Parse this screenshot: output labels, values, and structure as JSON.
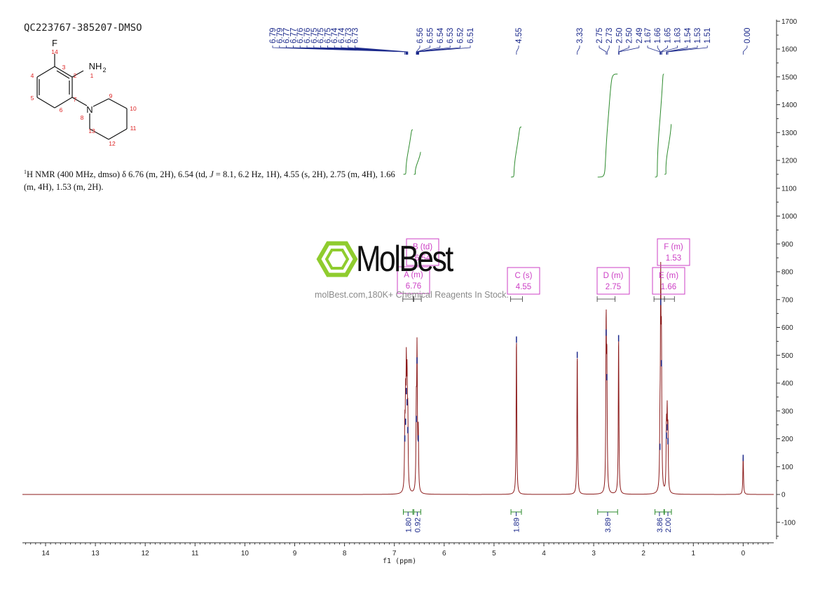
{
  "sample_id": "QC223767-385207-DMSO",
  "structure": {
    "atom_labels": {
      "f": "F",
      "f_num": "14",
      "nh2": "NH",
      "nh2_sub": "2",
      "nh2_num": "1",
      "n": "N",
      "n_num": "8",
      "c2": "2",
      "c3": "3",
      "c4": "4",
      "c5": "5",
      "c6": "6",
      "c7": "7",
      "c9": "9",
      "c10": "10",
      "c11": "11",
      "c12": "12",
      "c13": "13"
    }
  },
  "description": {
    "nucleus_sup": "1",
    "part1": "H NMR (400 MHz, dmso) δ 6.76 (m, 2H), 6.54 (td, ",
    "j": "J",
    "part2": " = 8.1, 6.2 Hz, 1H), 4.55 (s, 2H), 2.75 (m, 4H), 1.66",
    "part3": "(m, 4H), 1.53 (m, 2H)."
  },
  "watermark": {
    "brand": "MolBest",
    "caption": "molBest.com,180K+ Chemical Reagents In Stock."
  },
  "colors": {
    "spectrum": "#8b1a1a",
    "integral_curve": "#2e8b2e",
    "peak_labels": "#1c2a8c",
    "multiplet_box": "#cc3fc5",
    "watermark_logo": "#8fcc2e"
  },
  "chart_data": {
    "type": "line",
    "title": "",
    "xlabel": "f1 (ppm)",
    "ylabel": "",
    "xlim": [
      14.5,
      -0.55
    ],
    "ylim": [
      -170,
      1700
    ],
    "x_ticks": [
      "14",
      "13",
      "12",
      "11",
      "10",
      "9",
      "8",
      "7",
      "6",
      "5",
      "4",
      "3",
      "2",
      "1",
      "0"
    ],
    "y_ticks": [
      "1700",
      "1600",
      "1500",
      "1400",
      "1300",
      "1200",
      "1100",
      "1000",
      "900",
      "800",
      "700",
      "600",
      "500",
      "400",
      "300",
      "200",
      "100",
      "0",
      "-100"
    ],
    "peak_labels": [
      "6.79",
      "6.79",
      "6.77",
      "6.77",
      "6.76",
      "6.76",
      "6.75",
      "6.75",
      "6.75",
      "6.74",
      "6.74",
      "6.73",
      "6.73",
      "6.56",
      "6.55",
      "6.54",
      "6.53",
      "6.52",
      "6.51",
      "4.55",
      "3.33",
      "2.75",
      "2.73",
      "2.50",
      "2.50",
      "2.49",
      "1.67",
      "1.66",
      "1.65",
      "1.63",
      "1.54",
      "1.53",
      "1.51",
      "0.00"
    ],
    "peaks": [
      {
        "ppm": 6.79,
        "height": 210
      },
      {
        "ppm": 6.775,
        "height": 270
      },
      {
        "ppm": 6.76,
        "height": 380
      },
      {
        "ppm": 6.745,
        "height": 340
      },
      {
        "ppm": 6.73,
        "height": 240
      },
      {
        "ppm": 6.56,
        "height": 280
      },
      {
        "ppm": 6.545,
        "height": 490
      },
      {
        "ppm": 6.52,
        "height": 210
      },
      {
        "ppm": 4.55,
        "height": 565
      },
      {
        "ppm": 3.33,
        "height": 510
      },
      {
        "ppm": 2.75,
        "height": 590
      },
      {
        "ppm": 2.735,
        "height": 430
      },
      {
        "ppm": 2.5,
        "height": 570
      },
      {
        "ppm": 1.67,
        "height": 180
      },
      {
        "ppm": 1.655,
        "height": 700
      },
      {
        "ppm": 1.64,
        "height": 480
      },
      {
        "ppm": 1.54,
        "height": 220
      },
      {
        "ppm": 1.525,
        "height": 250
      },
      {
        "ppm": 1.51,
        "height": 200
      },
      {
        "ppm": 0.0,
        "height": 140
      }
    ],
    "integrals": [
      {
        "from": 6.82,
        "to": 6.63,
        "value": "1.80",
        "y_start": 1150,
        "y_end": 1310
      },
      {
        "from": 6.61,
        "to": 6.47,
        "value": "0.92",
        "y_start": 1150,
        "y_end": 1230
      },
      {
        "from": 4.66,
        "to": 4.45,
        "value": "1.89",
        "y_start": 1140,
        "y_end": 1320
      },
      {
        "from": 2.92,
        "to": 2.52,
        "value": "3.89",
        "y_start": 1140,
        "y_end": 1510
      },
      {
        "from": 1.77,
        "to": 1.59,
        "value": "3.86",
        "y_start": 1140,
        "y_end": 1510
      },
      {
        "from": 1.58,
        "to": 1.44,
        "value": "2.00",
        "y_start": 1150,
        "y_end": 1330
      }
    ],
    "multiplets": [
      {
        "label": "A (m)",
        "shift": "6.76",
        "from": 6.83,
        "to": 6.62
      },
      {
        "label": "B (td)",
        "shift": "6.54",
        "from": 6.61,
        "to": 6.46
      },
      {
        "label": "C (s)",
        "shift": "4.55",
        "from": 4.67,
        "to": 4.43
      },
      {
        "label": "D (m)",
        "shift": "2.75",
        "from": 2.93,
        "to": 2.57
      },
      {
        "label": "E (m)",
        "shift": "1.66",
        "from": 1.79,
        "to": 1.58
      },
      {
        "label": "F (m)",
        "shift": "1.53",
        "from": 1.58,
        "to": 1.38
      }
    ],
    "grid": false
  }
}
